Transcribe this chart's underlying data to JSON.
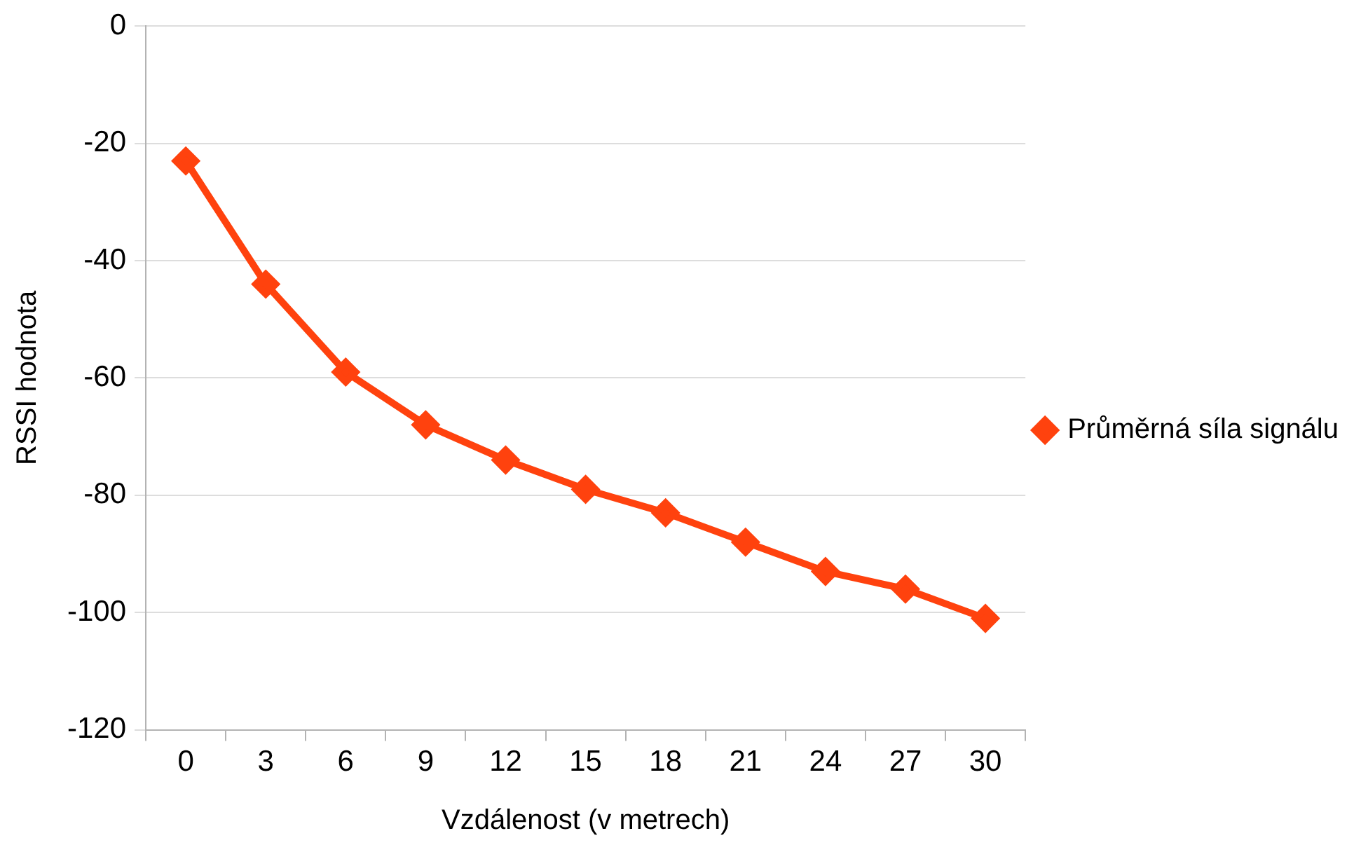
{
  "chart_data": {
    "type": "line",
    "xlabel": "Vzdálenost (v metrech)",
    "ylabel": "RSSI hodnota",
    "categories": [
      "0",
      "3",
      "6",
      "9",
      "12",
      "15",
      "18",
      "21",
      "24",
      "27",
      "30"
    ],
    "series": [
      {
        "name": "Průměrná síla signálu",
        "color": "#ff420e",
        "values": [
          -23,
          -44,
          -59,
          -68,
          -74,
          -79,
          -83,
          -88,
          -93,
          -96,
          -101
        ]
      }
    ],
    "ylim": [
      -120,
      0
    ],
    "yticks": [
      -120,
      -100,
      -80,
      -60,
      -40,
      -20,
      0
    ],
    "grid": "y",
    "legend": "right",
    "marker": "diamond",
    "line_style": "solid"
  }
}
